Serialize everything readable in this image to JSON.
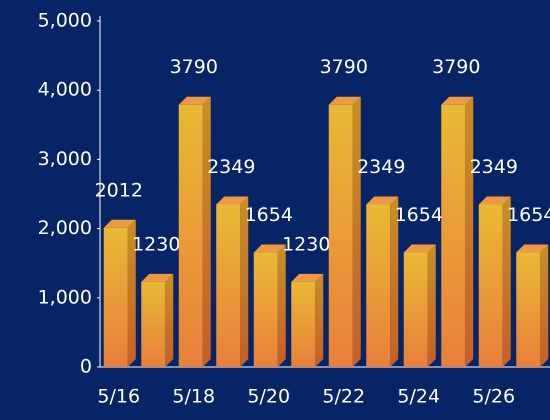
{
  "chart_data": {
    "type": "bar3d",
    "categories": [
      "5/16",
      null,
      "5/18",
      null,
      "5/20",
      null,
      "5/22",
      null,
      "5/24",
      null,
      "5/26",
      null
    ],
    "values": [
      2012,
      1230,
      3790,
      2349,
      1654,
      1230,
      3790,
      2349,
      1654,
      3790,
      2349,
      1654
    ],
    "color": "#e5a933",
    "ylim": [
      0,
      5000
    ],
    "yticks": [
      0,
      {
        "value": 1000,
        "label": "1,000"
      },
      {
        "value": 2000,
        "label": "2,000"
      },
      {
        "value": 3000,
        "label": "3,000"
      },
      {
        "value": 4000,
        "label": "4,000"
      },
      {
        "value": 5000,
        "label": "5,000"
      }
    ],
    "background": "#072466"
  }
}
